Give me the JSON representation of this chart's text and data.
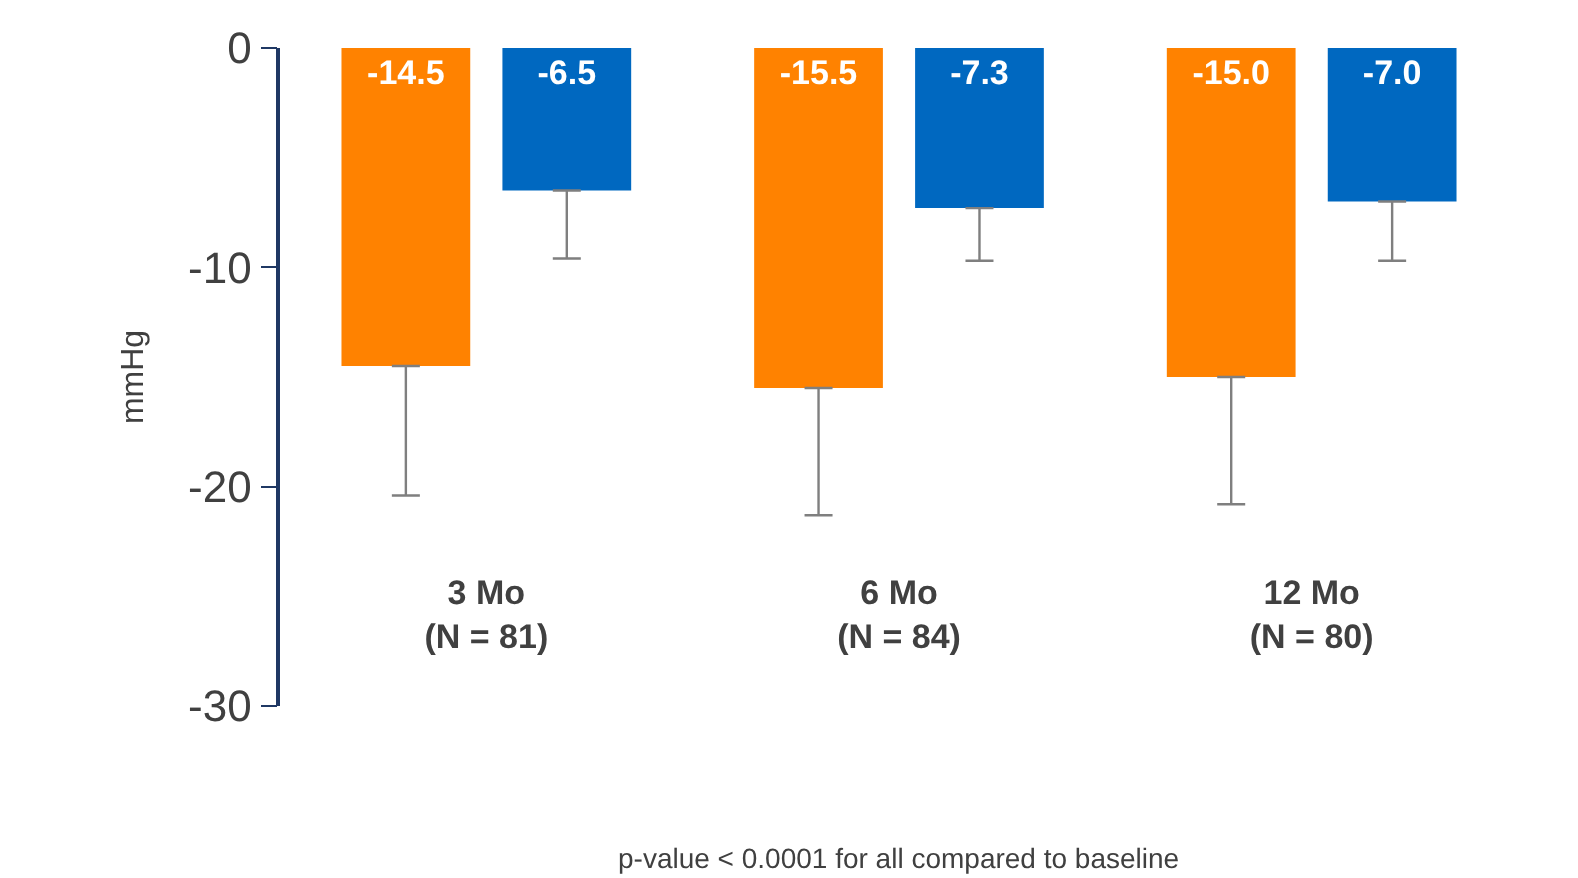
{
  "chart_data": {
    "type": "bar",
    "categories": [
      "3 Mo\n(N = 81)",
      "6 Mo\n(N = 84)",
      "12 Mo\n(N = 80)"
    ],
    "series": [
      {
        "color": "#ff8200",
        "values": [
          -14.5,
          -15.5,
          -15.0
        ],
        "value_labels": [
          "-14.5",
          "-15.5",
          "-15.0"
        ],
        "errors": [
          [
            -20.4,
            -14.5
          ],
          [
            -21.3,
            -15.5
          ],
          [
            -20.8,
            -15.0
          ]
        ]
      },
      {
        "color": "#0068c0",
        "values": [
          -6.5,
          -7.3,
          -7.0
        ],
        "value_labels": [
          "-6.5",
          "-7.3",
          "-7.0"
        ],
        "errors": [
          [
            -9.6,
            -6.5
          ],
          [
            -9.7,
            -7.3
          ],
          [
            -9.7,
            -7.0
          ]
        ]
      }
    ],
    "ylabel": "mmHg",
    "ylim": [
      -30,
      0
    ],
    "yticks": [
      0,
      -10,
      -20,
      -30
    ],
    "grid": false,
    "annotations": [
      "p-value < 0.0001 for all compared to baseline"
    ]
  }
}
